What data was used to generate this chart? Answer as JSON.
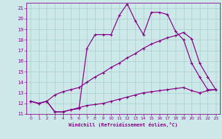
{
  "xlabel": "Windchill (Refroidissement éolien,°C)",
  "background_color": "#cce8e8",
  "grid_color": "#aacccc",
  "line_color": "#880088",
  "xlim": [
    -0.5,
    23.5
  ],
  "ylim": [
    11,
    21.5
  ],
  "ytick_min": 11,
  "ytick_max": 21,
  "xtick_min": 0,
  "xtick_max": 23,
  "line1_x": [
    0,
    1,
    2,
    3,
    4,
    5,
    6,
    7,
    8,
    9,
    10,
    11,
    12,
    13,
    14,
    15,
    16,
    17,
    18,
    19,
    20,
    21,
    22,
    23
  ],
  "line1_y": [
    12.2,
    12.0,
    12.2,
    11.2,
    11.2,
    11.4,
    11.5,
    17.2,
    18.5,
    18.5,
    18.5,
    20.3,
    21.4,
    19.8,
    18.5,
    20.6,
    20.6,
    20.4,
    18.8,
    18.0,
    15.8,
    14.5,
    13.3,
    13.3
  ],
  "line2_x": [
    0,
    1,
    2,
    3,
    4,
    5,
    6,
    7,
    8,
    9,
    10,
    11,
    12,
    13,
    14,
    15,
    16,
    17,
    18,
    19,
    20,
    21,
    22,
    23
  ],
  "line2_y": [
    12.2,
    12.0,
    12.2,
    12.8,
    13.1,
    13.3,
    13.5,
    14.0,
    14.5,
    14.9,
    15.4,
    15.8,
    16.3,
    16.7,
    17.2,
    17.6,
    17.9,
    18.2,
    18.4,
    18.7,
    18.1,
    15.8,
    14.5,
    13.3
  ],
  "line3_x": [
    0,
    1,
    2,
    3,
    4,
    5,
    6,
    7,
    8,
    9,
    10,
    11,
    12,
    13,
    14,
    15,
    16,
    17,
    18,
    19,
    20,
    21,
    22,
    23
  ],
  "line3_y": [
    12.2,
    12.0,
    12.2,
    11.2,
    11.2,
    11.4,
    11.6,
    11.8,
    11.9,
    12.0,
    12.2,
    12.4,
    12.6,
    12.8,
    13.0,
    13.1,
    13.2,
    13.3,
    13.4,
    13.5,
    13.2,
    13.0,
    13.2,
    13.3
  ]
}
